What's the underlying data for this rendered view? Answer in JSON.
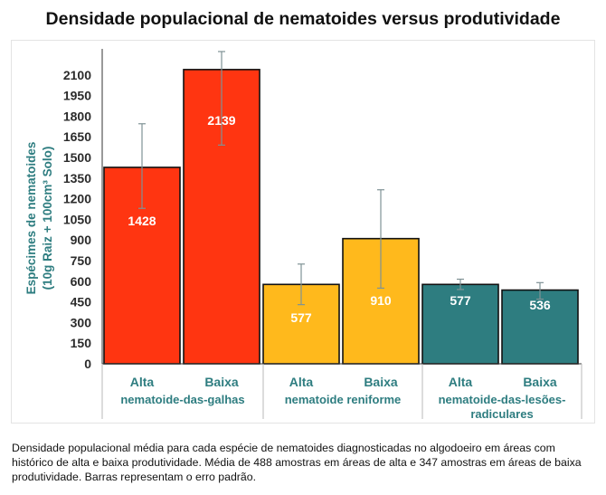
{
  "chart_data": {
    "type": "bar",
    "title": "Densidade populacional de nematoides versus produtividade",
    "ylabel": [
      "Espécimes de nematoides",
      "(10g Raiz + 100cm³ Solo)"
    ],
    "ylim": [
      0,
      2250
    ],
    "yticks": [
      0,
      150,
      300,
      450,
      600,
      750,
      900,
      1050,
      1200,
      1350,
      1500,
      1650,
      1800,
      1950,
      2100
    ],
    "grid": false,
    "groups": [
      {
        "name_lines": [
          "nematoide-das-galhas"
        ],
        "color": "#ff3511"
      },
      {
        "name_lines": [
          "nematoide reniforme"
        ],
        "color": "#ffb91c"
      },
      {
        "name_lines": [
          "nematoide-das-lesões-",
          "radiculares"
        ],
        "color": "#2e7d80"
      }
    ],
    "bars": [
      {
        "group": 0,
        "label": "Alta",
        "value": 1428,
        "value_label": "1428",
        "err_low": 1130,
        "err_high": 1745
      },
      {
        "group": 0,
        "label": "Baixa",
        "value": 2139,
        "value_label": "2139",
        "err_low": 1590,
        "err_high": 2270
      },
      {
        "group": 1,
        "label": "Alta",
        "value": 577,
        "value_label": "577",
        "err_low": 430,
        "err_high": 725
      },
      {
        "group": 1,
        "label": "Baixa",
        "value": 910,
        "value_label": "910",
        "err_low": 550,
        "err_high": 1265
      },
      {
        "group": 2,
        "label": "Alta",
        "value": 577,
        "value_label": "577",
        "err_low": 540,
        "err_high": 615
      },
      {
        "group": 2,
        "label": "Baixa",
        "value": 536,
        "value_label": "536",
        "err_low": 470,
        "err_high": 590
      }
    ],
    "colors": {
      "category_text": "#2e7d80",
      "axis_text": "#2b2b2b",
      "error_bar": "#7f9295",
      "bar_outline": "#111111",
      "value_label": "#ffffff"
    }
  },
  "caption": "Densidade populacional média para cada espécie de nematoides diagnosticadas no algodoeiro em áreas com histórico de alta e baixa produtividade. Média de 488 amostras em áreas de alta e 347 amostras em áreas de baixa produtividade. Barras representam o erro padrão."
}
